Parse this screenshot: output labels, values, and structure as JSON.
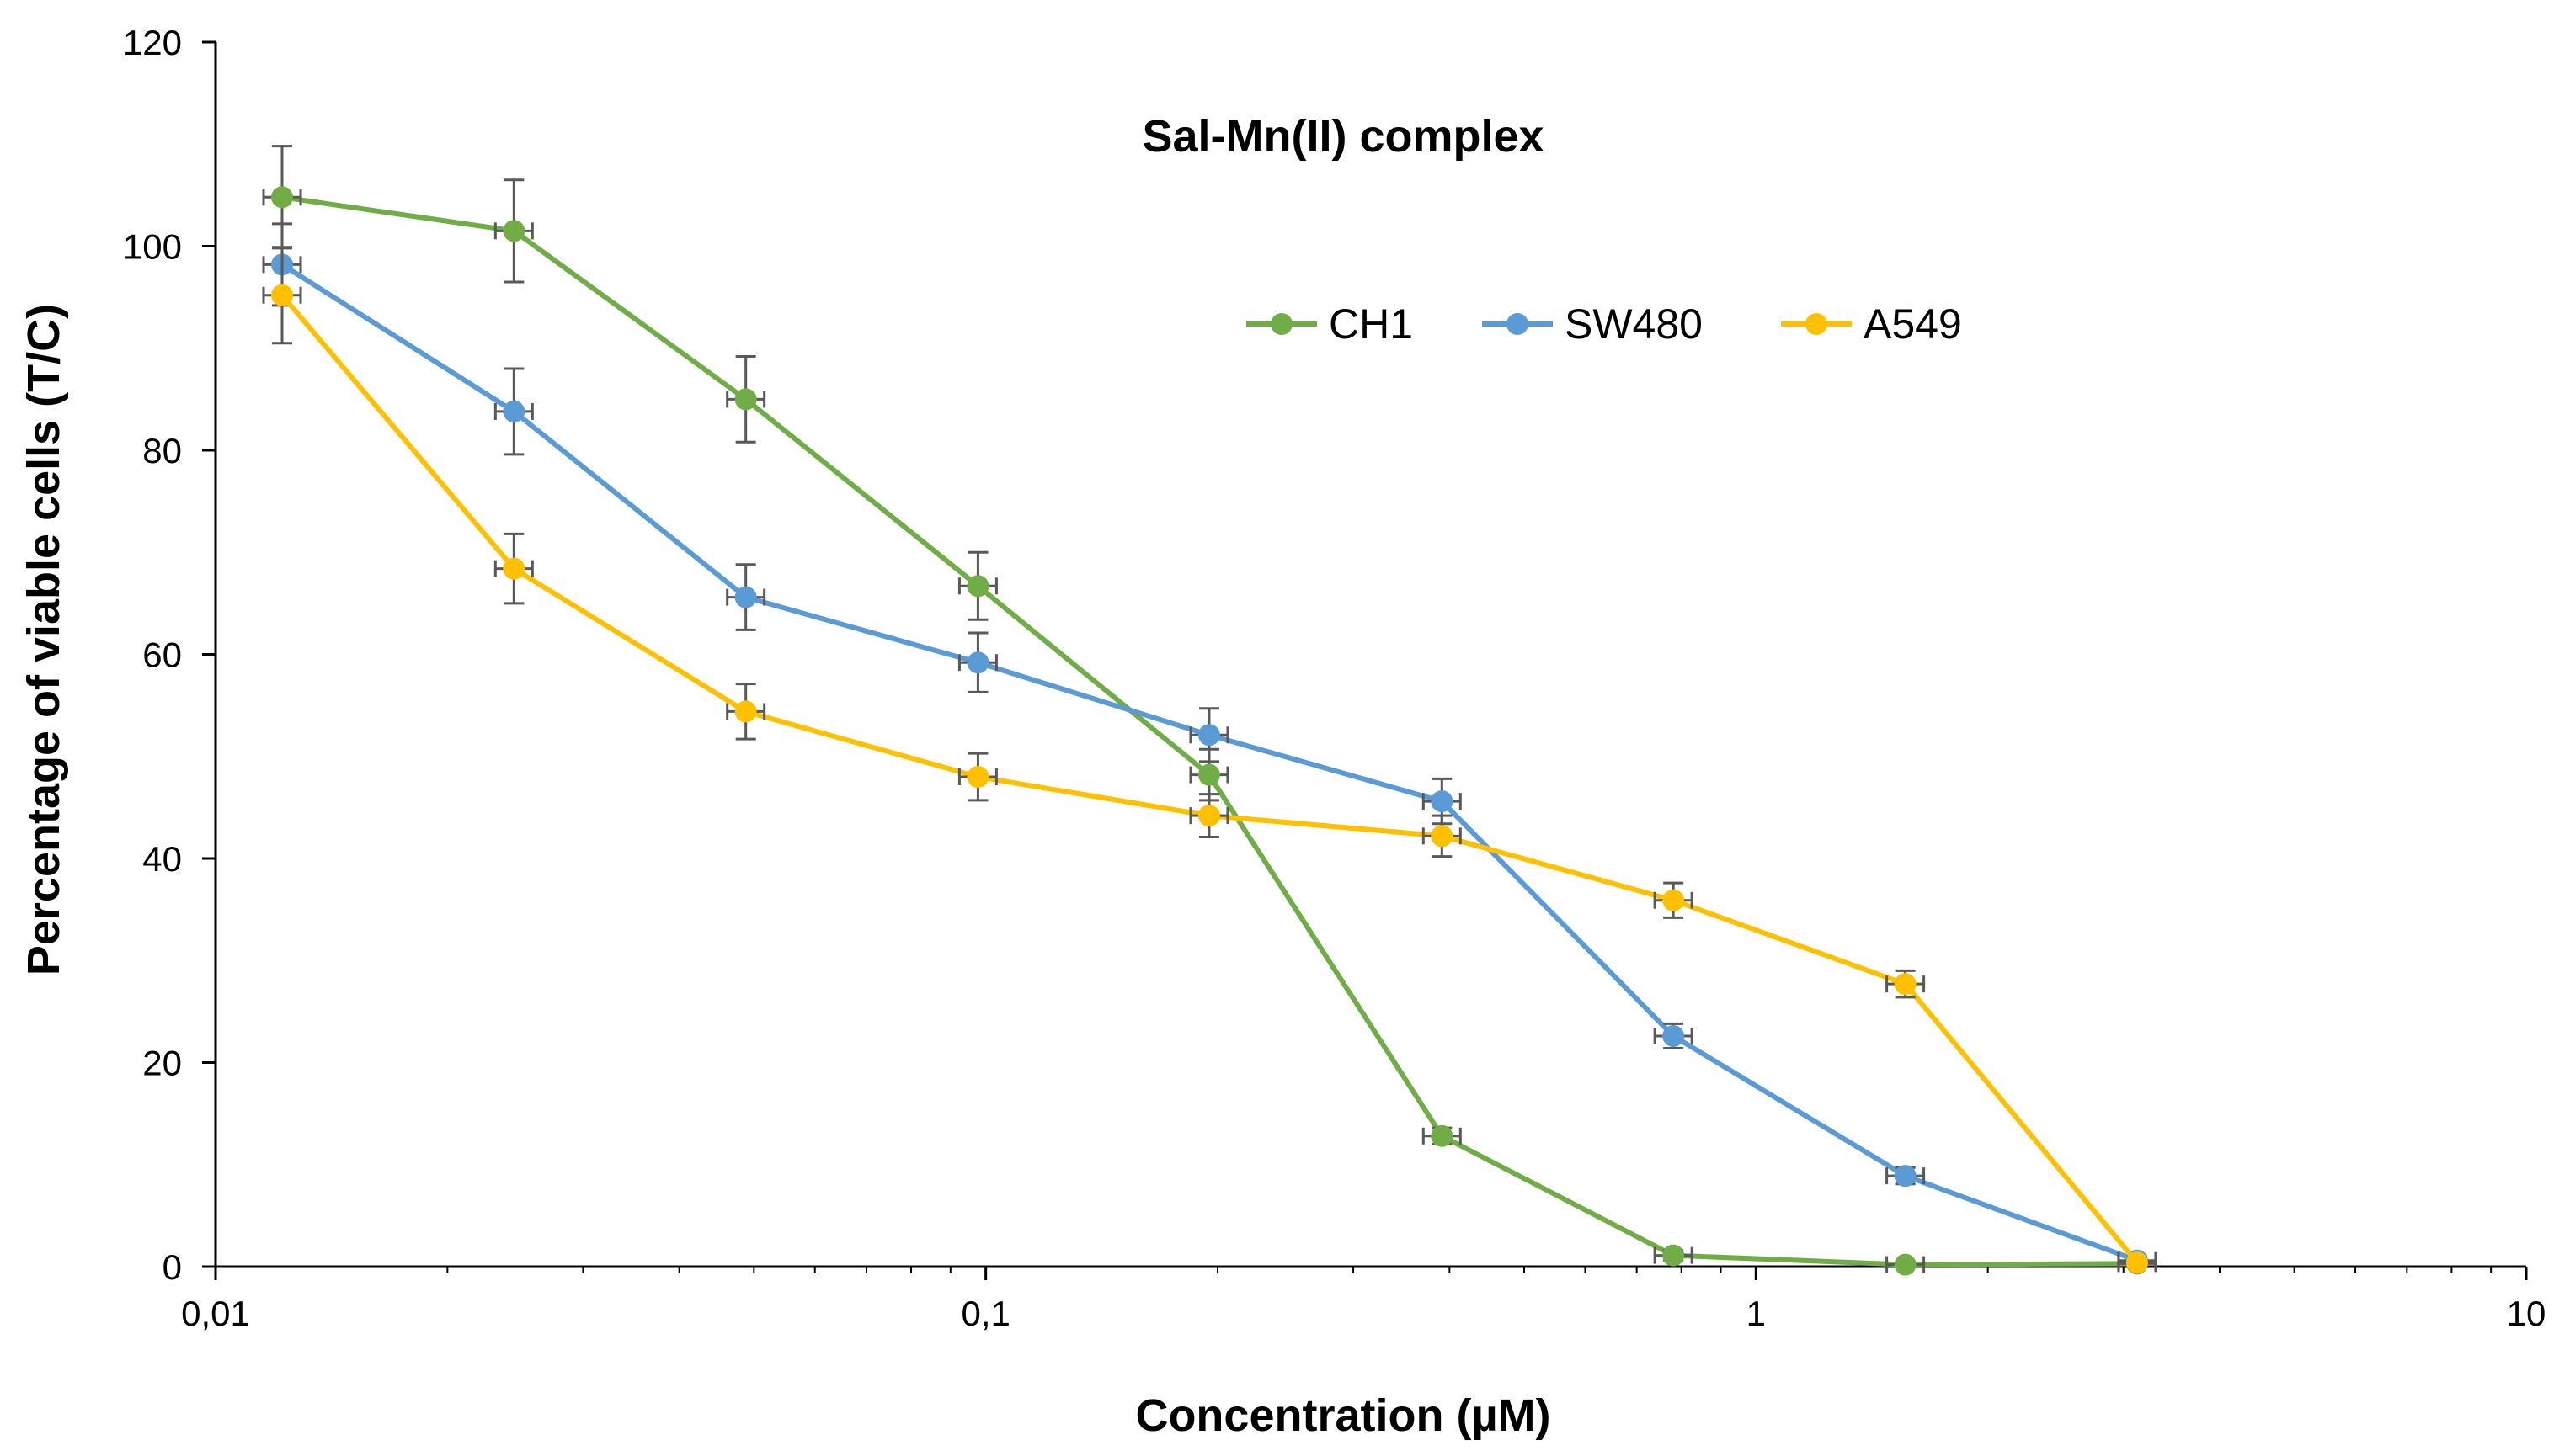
{
  "chart_data": {
    "type": "line",
    "title": "Sal-Mn(II) complex",
    "xlabel": "Concentration (µM)",
    "ylabel": "Percentage of viable cells (T/C)",
    "xscale": "log",
    "xlim": [
      0.01,
      10
    ],
    "ylim": [
      0,
      120
    ],
    "xticks": [
      0.01,
      0.1,
      1,
      10
    ],
    "xtick_labels": [
      "0,01",
      "0,1",
      "1",
      "10"
    ],
    "yticks": [
      0,
      20,
      40,
      60,
      80,
      100,
      120
    ],
    "ytick_labels": [
      "0",
      "20",
      "40",
      "60",
      "80",
      "100",
      "120"
    ],
    "grid": false,
    "legend_position": "top-right",
    "x": [
      0.0122,
      0.0244,
      0.0488,
      0.0977,
      0.195,
      0.391,
      0.781,
      1.5625,
      3.125
    ],
    "series": [
      {
        "name": "CH1",
        "color": "#70AD47",
        "values": [
          104.8,
          101.5,
          85.0,
          66.7,
          48.2,
          12.8,
          1.1,
          0.2,
          0.3
        ],
        "errors": [
          5.0,
          5.0,
          4.2,
          3.3,
          2.5,
          0.8,
          0.5,
          0.3,
          0.3
        ]
      },
      {
        "name": "SW480",
        "color": "#5B9BD5",
        "values": [
          98.2,
          83.8,
          65.6,
          59.2,
          52.1,
          45.6,
          22.6,
          8.9,
          0.6
        ],
        "errors": [
          4.0,
          4.2,
          3.2,
          2.9,
          2.6,
          2.2,
          1.2,
          0.8,
          0.4
        ]
      },
      {
        "name": "A549",
        "color": "#FFC000",
        "values": [
          95.2,
          68.4,
          54.4,
          48.0,
          44.2,
          42.2,
          35.9,
          27.7,
          0.4
        ],
        "errors": [
          4.7,
          3.4,
          2.7,
          2.3,
          2.1,
          2.0,
          1.7,
          1.3,
          0.3
        ]
      }
    ]
  }
}
